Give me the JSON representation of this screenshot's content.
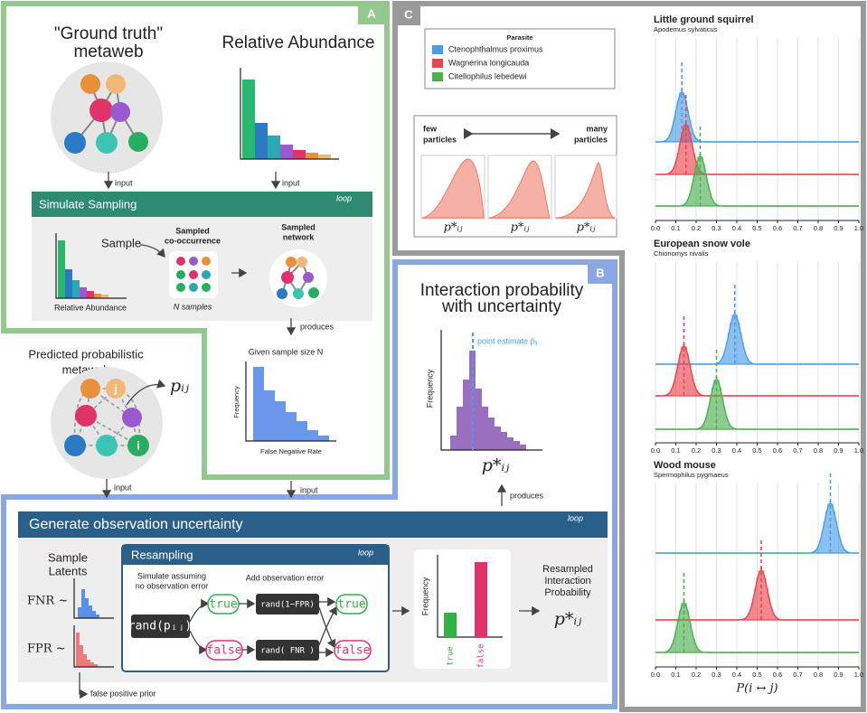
{
  "panel_a": {
    "label": "A",
    "ground_truth": [
      "\"Ground truth\"",
      "metaweb"
    ],
    "relative_abundance": "Relative Abundance",
    "input_1": "input",
    "input_2": "input",
    "simulate_sampling": "Simulate Sampling",
    "loop": "loop",
    "sample": "Sample",
    "sampled_cooccurrence": [
      "Sampled",
      "co-occurrence"
    ],
    "sampled_network": [
      "Sampled",
      "network"
    ],
    "relative_abundance_small": "Relative Abundance",
    "n_samples": "N samples",
    "produces": "produces",
    "given_sample_size": "Given sample size N",
    "frequency": "Frequency",
    "false_negative_rate": "False Negative Rate"
  },
  "predicted": {
    "title": [
      "Predicted probabilistic",
      "metaweb"
    ],
    "p_ij": "pᵢⱼ",
    "node_j": "j",
    "node_i": "i",
    "input_left": "input",
    "input_right": "input"
  },
  "panel_b": {
    "label": "B",
    "title": [
      "Interaction probability",
      "with uncertainty"
    ],
    "point_estimate": "point estimate p̂ᵢⱼ",
    "frequency": "Frequency",
    "p_star": "p*ᵢⱼ",
    "produces": "produces",
    "generate": "Generate observation uncertainty",
    "loop": "loop",
    "sample_latents": [
      "Sample",
      "Latents"
    ],
    "fnr": "FNR ~",
    "fpr": "FPR ~",
    "false_positive_prior": "false positive prior",
    "resampling": "Resampling",
    "loop2": "loop",
    "simulate": [
      "Simulate assuming",
      "no observation error"
    ],
    "add_error": "Add observation error",
    "rand_p": "rand(pᵢⱼ)",
    "true1": "true",
    "false1": "false",
    "rand_1fpr": "rand(1−FPR)",
    "rand_fnr": "rand( FNR )",
    "true2": "true",
    "false2": "false",
    "frequency2": "Frequency",
    "bar_true": "true",
    "bar_false": "false",
    "resampled": [
      "Resampled",
      "Interaction",
      "Probability"
    ],
    "p_star2": "p*ᵢⱼ"
  },
  "panel_c": {
    "label": "C",
    "legend_title": "Parasite",
    "particles_few": [
      "few",
      "particles"
    ],
    "particles_many": [
      "many",
      "particles"
    ],
    "p_labels": [
      "p*ᵢⱼ",
      "p*ᵢⱼ",
      "p*ᵢⱼ"
    ]
  },
  "chart_data": [
    {
      "type": "density",
      "title": "Little ground squirrel",
      "subtitle": "Apodemus sylvaticus",
      "series": [
        {
          "name": "Ctenophthalmus proximus",
          "color": "#4a9de8",
          "values": [
            0.13
          ]
        },
        {
          "name": "Wagnerina longicauda",
          "color": "#e8454f",
          "values": [
            0.15
          ]
        },
        {
          "name": "Citellophilus lebedewi",
          "color": "#4caf50",
          "values": [
            0.22
          ]
        }
      ],
      "xlim": [
        0,
        1
      ],
      "xticks": [
        {
          "value": 0,
          "label": "0.0"
        },
        0.1,
        0.2,
        0.3,
        0.4,
        0.5,
        0.6,
        0.7,
        0.8,
        0.9,
        {
          "value": 1,
          "label": "1.0"
        }
      ],
      "grid": true
    },
    {
      "type": "density",
      "title": "European snow vole",
      "subtitle": "Chionomys nivalis",
      "series": [
        {
          "color": "#4a9de8",
          "values": [
            0.39
          ]
        },
        {
          "color": "#e8454f",
          "values": [
            0.14
          ]
        },
        {
          "color": "#4caf50",
          "values": [
            0.3
          ]
        }
      ],
      "xlim": [
        0,
        1
      ],
      "xticks": [
        {
          "value": 0,
          "label": "0.0"
        },
        0.1,
        0.2,
        0.3,
        0.4,
        0.5,
        0.6,
        0.7,
        0.8,
        0.9,
        {
          "value": 1,
          "label": "1.0"
        }
      ],
      "grid": true
    },
    {
      "type": "density",
      "title": "Wood mouse",
      "subtitle": "Spermophilus pygmaeus",
      "xlabel": "P(i ↔ j)",
      "series": [
        {
          "color": "#4a9de8",
          "values": [
            0.86
          ]
        },
        {
          "color": "#e8454f",
          "values": [
            0.52
          ]
        },
        {
          "color": "#4caf50",
          "values": [
            0.14
          ]
        }
      ],
      "xlim": [
        0,
        1
      ],
      "xticks": [
        {
          "value": 0,
          "label": "0.0"
        },
        0.1,
        0.2,
        0.3,
        0.4,
        0.5,
        0.6,
        0.7,
        0.8,
        0.9,
        {
          "value": 1,
          "label": "1.0"
        }
      ],
      "grid": true
    }
  ]
}
